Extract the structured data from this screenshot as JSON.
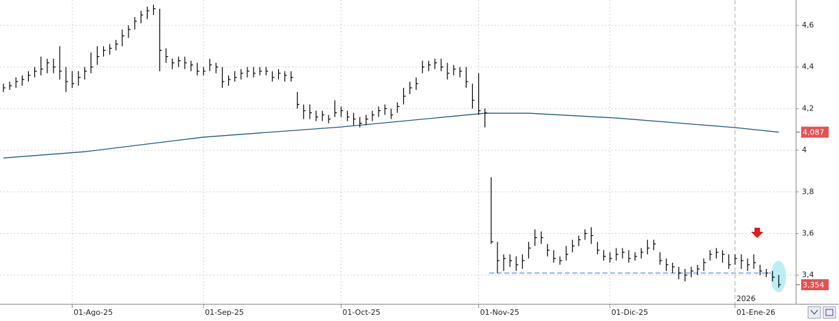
{
  "chart_data": {
    "type": "ohlc",
    "categories": [
      null,
      null,
      null,
      null,
      null,
      null,
      null,
      null,
      null,
      null,
      null,
      "01-Ago-25",
      null,
      null,
      null,
      null,
      null,
      null,
      null,
      null,
      null,
      null,
      null,
      null,
      null,
      null,
      null,
      null,
      null,
      null,
      null,
      null,
      "01-Sep-25",
      null,
      null,
      null,
      null,
      null,
      null,
      null,
      null,
      null,
      null,
      null,
      null,
      null,
      null,
      null,
      null,
      null,
      null,
      null,
      null,
      null,
      "01-Oct-25",
      null,
      null,
      null,
      null,
      null,
      null,
      null,
      null,
      null,
      null,
      null,
      null,
      null,
      null,
      null,
      null,
      null,
      null,
      null,
      null,
      null,
      "01-Nov-25",
      null,
      null,
      null,
      null,
      null,
      null,
      null,
      null,
      null,
      null,
      null,
      null,
      null,
      null,
      null,
      null,
      null,
      null,
      null,
      null,
      "01-Dic-25",
      null,
      null,
      null,
      null,
      null,
      null,
      null,
      null,
      null,
      null,
      null,
      null,
      null,
      null,
      null,
      null,
      null,
      null,
      null,
      "01-Ene-26",
      null,
      null,
      null,
      null,
      null,
      null,
      null
    ],
    "high": [
      4.32,
      4.33,
      4.35,
      4.36,
      4.38,
      4.4,
      4.45,
      4.44,
      4.44,
      4.5,
      4.4,
      4.38,
      4.38,
      4.4,
      4.47,
      4.5,
      4.5,
      4.51,
      4.53,
      4.58,
      4.6,
      4.64,
      4.67,
      4.69,
      4.7,
      4.68,
      4.49,
      4.44,
      4.45,
      4.45,
      4.43,
      4.42,
      4.4,
      4.44,
      4.42,
      4.4,
      4.36,
      4.38,
      4.39,
      4.4,
      4.4,
      4.4,
      4.4,
      4.38,
      4.39,
      4.38,
      4.38,
      4.28,
      4.22,
      4.22,
      4.19,
      4.19,
      4.17,
      4.24,
      4.21,
      4.19,
      4.18,
      4.16,
      4.17,
      4.19,
      4.21,
      4.22,
      4.2,
      4.23,
      4.3,
      4.33,
      4.35,
      4.43,
      4.43,
      4.44,
      4.44,
      4.42,
      4.41,
      4.4,
      4.4,
      4.32,
      4.37,
      4.2,
      3.87,
      3.56,
      3.5,
      3.5,
      3.49,
      3.5,
      3.56,
      3.62,
      3.61,
      3.55,
      3.52,
      3.49,
      3.54,
      3.57,
      3.59,
      3.62,
      3.63,
      3.56,
      3.52,
      3.51,
      3.53,
      3.53,
      3.52,
      3.51,
      3.53,
      3.57,
      3.57,
      3.51,
      3.48,
      3.46,
      3.44,
      3.43,
      3.44,
      3.45,
      3.48,
      3.52,
      3.53,
      3.52,
      3.5,
      3.5,
      3.5,
      3.48,
      3.5,
      3.45,
      3.43,
      3.42,
      3.4
    ],
    "low": [
      4.28,
      4.29,
      4.3,
      4.31,
      4.33,
      4.35,
      4.36,
      4.37,
      4.37,
      4.34,
      4.28,
      4.3,
      4.31,
      4.34,
      4.37,
      4.41,
      4.45,
      4.46,
      4.48,
      4.5,
      4.54,
      4.58,
      4.61,
      4.63,
      4.65,
      4.38,
      4.42,
      4.39,
      4.4,
      4.39,
      4.38,
      4.36,
      4.36,
      4.38,
      4.37,
      4.3,
      4.31,
      4.33,
      4.34,
      4.35,
      4.35,
      4.36,
      4.36,
      4.33,
      4.34,
      4.33,
      4.33,
      4.2,
      4.15,
      4.15,
      4.14,
      4.14,
      4.13,
      4.16,
      4.16,
      4.14,
      4.12,
      4.11,
      4.12,
      4.14,
      4.16,
      4.17,
      4.15,
      4.18,
      4.22,
      4.27,
      4.29,
      4.37,
      4.38,
      4.39,
      4.38,
      4.34,
      4.36,
      4.35,
      4.3,
      4.2,
      4.17,
      4.11,
      3.55,
      3.41,
      3.42,
      3.44,
      3.42,
      3.43,
      3.48,
      3.54,
      3.55,
      3.49,
      3.46,
      3.45,
      3.47,
      3.51,
      3.54,
      3.57,
      3.55,
      3.5,
      3.47,
      3.46,
      3.47,
      3.48,
      3.46,
      3.47,
      3.48,
      3.5,
      3.52,
      3.45,
      3.42,
      3.41,
      3.38,
      3.37,
      3.39,
      3.4,
      3.42,
      3.47,
      3.48,
      3.46,
      3.43,
      3.45,
      3.43,
      3.42,
      3.43,
      3.4,
      3.39,
      3.37,
      3.34
    ],
    "close": [
      4.3,
      4.31,
      4.33,
      4.34,
      4.36,
      4.38,
      4.39,
      4.42,
      4.4,
      4.38,
      4.33,
      4.32,
      4.35,
      4.38,
      4.4,
      4.45,
      4.48,
      4.49,
      4.51,
      4.55,
      4.58,
      4.62,
      4.65,
      4.67,
      4.68,
      4.48,
      4.45,
      4.42,
      4.43,
      4.42,
      4.41,
      4.38,
      4.38,
      4.41,
      4.4,
      4.33,
      4.34,
      4.35,
      4.37,
      4.38,
      4.37,
      4.38,
      4.38,
      4.35,
      4.37,
      4.36,
      4.35,
      4.22,
      4.19,
      4.18,
      4.16,
      4.17,
      4.15,
      4.18,
      4.19,
      4.16,
      4.15,
      4.13,
      4.15,
      4.17,
      4.19,
      4.2,
      4.17,
      4.21,
      4.26,
      4.3,
      4.32,
      4.4,
      4.41,
      4.42,
      4.4,
      4.37,
      4.39,
      4.38,
      4.33,
      4.24,
      4.19,
      4.18,
      3.56,
      3.47,
      3.48,
      3.47,
      3.45,
      3.47,
      3.53,
      3.58,
      3.58,
      3.52,
      3.48,
      3.47,
      3.5,
      3.54,
      3.57,
      3.6,
      3.59,
      3.52,
      3.49,
      3.48,
      3.5,
      3.51,
      3.48,
      3.49,
      3.51,
      3.53,
      3.55,
      3.47,
      3.45,
      3.44,
      3.41,
      3.4,
      3.42,
      3.43,
      3.46,
      3.5,
      3.51,
      3.5,
      3.45,
      3.48,
      3.47,
      3.45,
      3.46,
      3.42,
      3.41,
      3.39,
      3.354
    ],
    "color": "#000000",
    "moving_average": {
      "color": "#1f5a78",
      "x": [
        0,
        13,
        32,
        54,
        77,
        84,
        98,
        117,
        124
      ],
      "values": [
        3.963,
        3.993,
        4.063,
        4.112,
        4.178,
        4.178,
        4.155,
        4.109,
        4.087
      ]
    },
    "support": {
      "value": 3.41,
      "color": "#9cc3e6"
    },
    "price_labels": [
      {
        "value": 4.087,
        "label": "4,087"
      },
      {
        "value": 3.354,
        "label": "3,354"
      }
    ],
    "price_label_color": "#e8504f",
    "year_label": "2026",
    "ylim": [
      3.262,
      4.722
    ],
    "yticks": [
      {
        "value": 3.4,
        "label": "3,4"
      },
      {
        "value": 3.6,
        "label": "3,6"
      },
      {
        "value": 3.8,
        "label": "3,8"
      },
      {
        "value": 4,
        "label": "4"
      },
      {
        "value": 4.2,
        "label": "4,2"
      },
      {
        "value": 4.4,
        "label": "4,4"
      },
      {
        "value": 4.6,
        "label": "4,6"
      }
    ],
    "grid": true
  }
}
